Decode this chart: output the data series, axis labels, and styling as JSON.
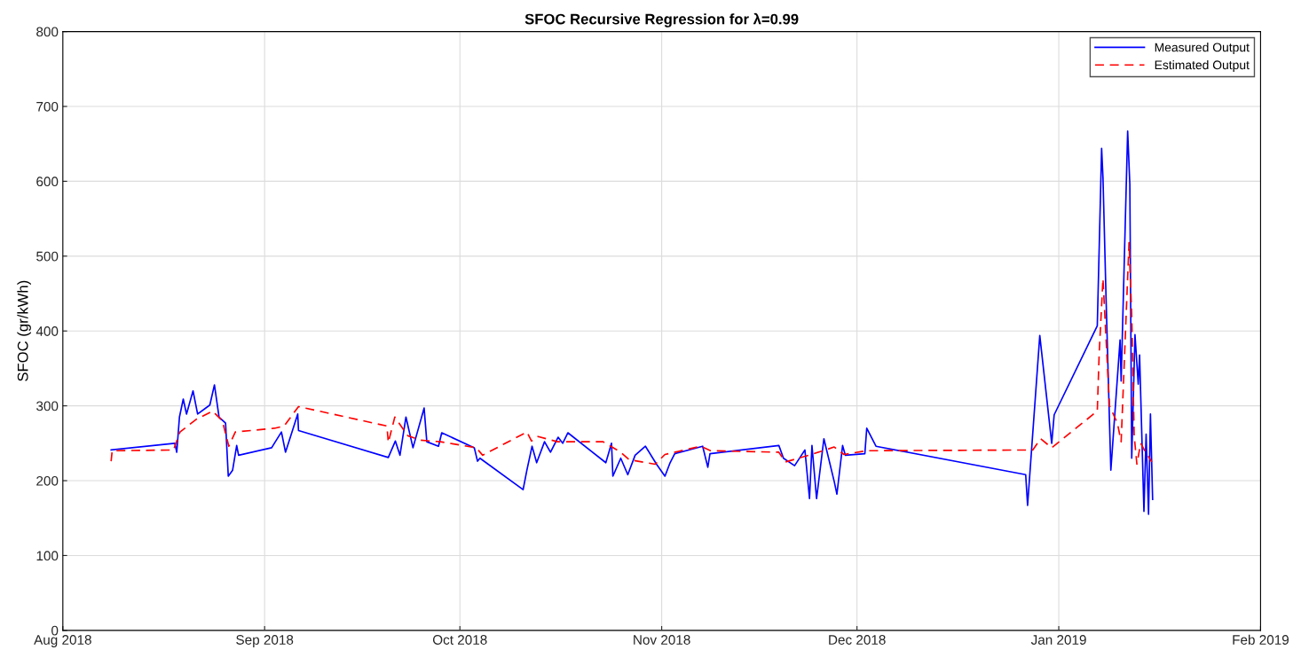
{
  "chart_data": {
    "type": "line",
    "title": "SFOC Recursive Regression for λ=0.99",
    "ylabel": "SFOC (gr/kWh)",
    "xlim": [
      "2018-08-01",
      "2019-02-01"
    ],
    "xticks": [
      {
        "value": "2018-08-01",
        "label": "Aug 2018"
      },
      {
        "value": "2018-09-01",
        "label": "Sep 2018"
      },
      {
        "value": "2018-10-01",
        "label": "Oct 2018"
      },
      {
        "value": "2018-11-01",
        "label": "Nov 2018"
      },
      {
        "value": "2018-12-01",
        "label": "Dec 2018"
      },
      {
        "value": "2019-01-01",
        "label": "Jan 2019"
      },
      {
        "value": "2019-02-01",
        "label": "Feb 2019"
      }
    ],
    "ylim": [
      0,
      800
    ],
    "yticks": [
      0,
      100,
      200,
      300,
      400,
      500,
      600,
      700,
      800
    ],
    "grid": true,
    "legend": "top right",
    "series": [
      {
        "name": "Measured Output",
        "color": "#0000ff",
        "line_style": "solid",
        "x": [
          "2018-08-08T10:00",
          "2018-08-18T05:00",
          "2018-08-18T12:00",
          "2018-08-18T22:00",
          "2018-08-19T12:00",
          "2018-08-20T00:00",
          "2018-08-21T00:00",
          "2018-08-21T17:00",
          "2018-08-23T14:00",
          "2018-08-24T07:00",
          "2018-08-25T00:00",
          "2018-08-26T00:00",
          "2018-08-26T10:00",
          "2018-08-27T02:00",
          "2018-08-27T17:00",
          "2018-08-28T00:00",
          "2018-09-02T02:00",
          "2018-09-02T12:00",
          "2018-09-03T14:00",
          "2018-09-04T05:00",
          "2018-09-06T02:00",
          "2018-09-06T05:00",
          "2018-09-20T00:00",
          "2018-09-21T02:00",
          "2018-09-21T19:00",
          "2018-09-22T17:00",
          "2018-09-23T19:00",
          "2018-09-25T12:00",
          "2018-09-25T22:00",
          "2018-09-27T17:00",
          "2018-09-28T05:00",
          "2018-10-03T05:00",
          "2018-10-03T17:00",
          "2018-10-04T02:00",
          "2018-10-10T17:00",
          "2018-10-11T07:00",
          "2018-10-12T02:00",
          "2018-10-12T19:00",
          "2018-10-14T00:00",
          "2018-10-14T22:00",
          "2018-10-16T02:00",
          "2018-10-16T19:00",
          "2018-10-17T14:00",
          "2018-10-23T10:00",
          "2018-10-24T07:00",
          "2018-10-24T12:00",
          "2018-10-25T17:00",
          "2018-10-26T19:00",
          "2018-10-27T22:00",
          "2018-10-29T12:00",
          "2018-10-31T05:00",
          "2018-11-01T12:00",
          "2018-11-02T07:00",
          "2018-11-03T00:00",
          "2018-11-07T07:00",
          "2018-11-08T02:00",
          "2018-11-08T10:00",
          "2018-11-19T00:00",
          "2018-11-19T17:00",
          "2018-11-21T10:00",
          "2018-11-23T00:00",
          "2018-11-23T17:00",
          "2018-11-24T02:00",
          "2018-11-24T19:00",
          "2018-11-25T22:00",
          "2018-11-27T12:00",
          "2018-11-27T22:00",
          "2018-11-28T19:00",
          "2018-11-29T05:00",
          "2018-12-02T05:00",
          "2018-12-02T12:00",
          "2018-12-03T22:00",
          "2018-12-26T22:00",
          "2018-12-27T05:00",
          "2018-12-29T02:00",
          "2018-12-30T22:00",
          "2018-12-31T07:00",
          "2019-01-06T22:00",
          "2019-01-07T14:00",
          "2019-01-07T19:00",
          "2019-01-08T07:00",
          "2019-01-09T00:00",
          "2019-01-10T10:00",
          "2019-01-10T14:00",
          "2019-01-11T14:00",
          "2019-01-11T22:00",
          "2019-01-12T05:00",
          "2019-01-12T17:00",
          "2019-01-13T05:00",
          "2019-01-13T10:00",
          "2019-01-14T02:00",
          "2019-01-14T10:00",
          "2019-01-14T19:00",
          "2019-01-15T02:00",
          "2019-01-15T10:00"
        ],
        "values": [
          241,
          250,
          238,
          285,
          309,
          289,
          320,
          289,
          301,
          328,
          285,
          277,
          206,
          214,
          247,
          234,
          244,
          250,
          265,
          238,
          289,
          267,
          231,
          253,
          234,
          285,
          244,
          297,
          252,
          246,
          264,
          244,
          226,
          230,
          188,
          214,
          246,
          224,
          252,
          238,
          258,
          250,
          264,
          224,
          250,
          206,
          230,
          208,
          234,
          246,
          222,
          206,
          224,
          236,
          246,
          218,
          236,
          247,
          230,
          220,
          241,
          176,
          247,
          176,
          256,
          199,
          182,
          247,
          234,
          236,
          270,
          246,
          208,
          167,
          394,
          250,
          288,
          407,
          644,
          605,
          435,
          214,
          388,
          333,
          667,
          596,
          230,
          395,
          329,
          368,
          159,
          262,
          155,
          289,
          175
        ]
      },
      {
        "name": "Estimated Output",
        "color": "#ff0000",
        "line_style": "dashed",
        "x": [
          "2018-08-08T10:00",
          "2018-08-08T14:00",
          "2018-08-18T00:00",
          "2018-08-19T00:00",
          "2018-08-21T12:00",
          "2018-08-24T00:00",
          "2018-08-25T12:00",
          "2018-08-26T12:00",
          "2018-08-27T12:00",
          "2018-09-02T12:00",
          "2018-09-04T00:00",
          "2018-09-06T05:00",
          "2018-09-19T19:00",
          "2018-09-20T00:00",
          "2018-09-21T00:00",
          "2018-09-23T00:00",
          "2018-09-25T00:00",
          "2018-09-28T00:00",
          "2018-10-03T12:00",
          "2018-10-04T12:00",
          "2018-10-11T07:00",
          "2018-10-12T00:00",
          "2018-10-13T00:00",
          "2018-10-16T00:00",
          "2018-10-23T00:00",
          "2018-10-25T17:00",
          "2018-10-27T00:00",
          "2018-10-31T00:00",
          "2018-11-01T12:00",
          "2018-11-07T00:00",
          "2018-11-08T12:00",
          "2018-11-19T00:00",
          "2018-11-20T00:00",
          "2018-11-24T00:00",
          "2018-11-27T12:00",
          "2018-11-29T00:00",
          "2018-12-02T12:00",
          "2018-12-28T00:00",
          "2018-12-29T05:00",
          "2018-12-30T22:00",
          "2019-01-06T22:00",
          "2019-01-07T05:00",
          "2019-01-07T19:00",
          "2019-01-08T19:00",
          "2019-01-10T00:00",
          "2019-01-10T14:00",
          "2019-01-11T19:00",
          "2019-01-12T05:00",
          "2019-01-12T14:00",
          "2019-01-13T00:00",
          "2019-01-13T14:00",
          "2019-01-14T05:00",
          "2019-01-14T19:00",
          "2019-01-15T07:00"
        ],
        "values": [
          226,
          240,
          241,
          265,
          282,
          293,
          280,
          246,
          265,
          270,
          273,
          299,
          273,
          251,
          285,
          260,
          254,
          252,
          244,
          234,
          265,
          253,
          259,
          252,
          252,
          238,
          228,
          222,
          235,
          246,
          240,
          238,
          225,
          235,
          245,
          235,
          240,
          241,
          256,
          244,
          293,
          370,
          470,
          300,
          277,
          252,
          518,
          420,
          260,
          222,
          250,
          240,
          232,
          225
        ]
      }
    ]
  }
}
